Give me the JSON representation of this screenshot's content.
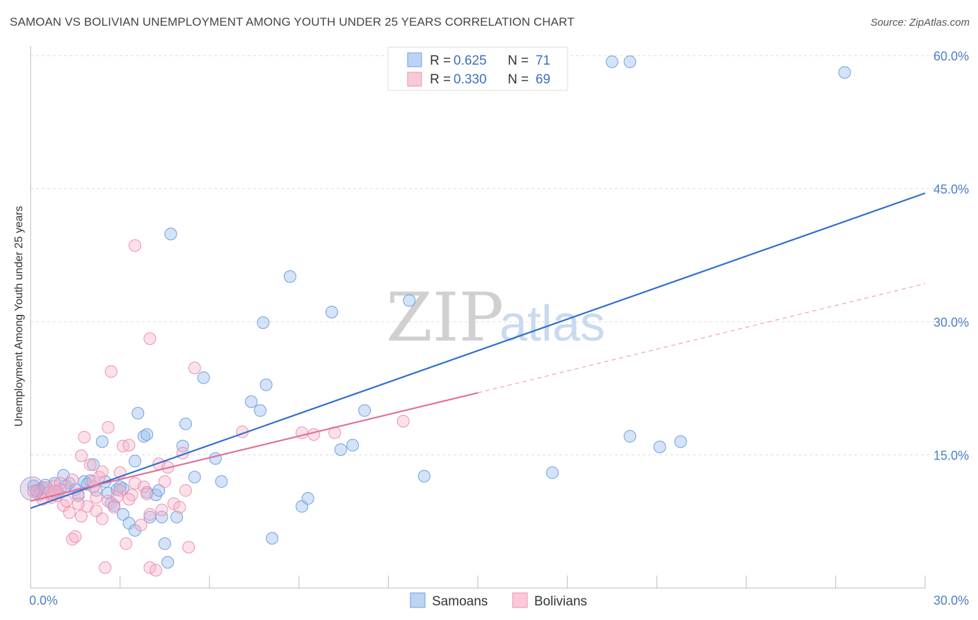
{
  "header": {
    "title": "SAMOAN VS BOLIVIAN UNEMPLOYMENT AMONG YOUTH UNDER 25 YEARS CORRELATION CHART",
    "source": "Source: ZipAtlas.com"
  },
  "watermark": {
    "zip": "ZIP",
    "atlas": "atlas"
  },
  "legend": {
    "samoans": {
      "r_label": "R =",
      "r_value": "0.625",
      "n_label": "N =",
      "n_value": "71",
      "color": "#6f9fe0"
    },
    "bolivians": {
      "r_label": "R =",
      "r_value": "0.330",
      "n_label": "N =",
      "n_value": "69",
      "color": "#f08fb0"
    }
  },
  "bottom_legend": {
    "samoans": "Samoans",
    "bolivians": "Bolivians"
  },
  "chart_data": {
    "type": "scatter",
    "title": "SAMOAN VS BOLIVIAN UNEMPLOYMENT AMONG YOUTH UNDER 25 YEARS CORRELATION CHART",
    "xlabel": "",
    "ylabel": "Unemployment Among Youth under 25 years",
    "xlim": [
      0,
      30
    ],
    "ylim": [
      0,
      60
    ],
    "x_tick_labels": [
      "0.0%",
      "30.0%"
    ],
    "y_tick_labels": [
      {
        "value": 15,
        "label": "15.0%"
      },
      {
        "value": 30,
        "label": "30.0%"
      },
      {
        "value": 45,
        "label": "45.0%"
      },
      {
        "value": 60,
        "label": "60.0%"
      }
    ],
    "grid": true,
    "series": [
      {
        "name": "Samoans",
        "color": "#6f9fe0",
        "trend": {
          "x0": 0,
          "y0": 9.0,
          "x1": 30,
          "y1": 44.5,
          "dashed_from": null
        },
        "points": [
          [
            0.1,
            11.5
          ],
          [
            0.3,
            11.0
          ],
          [
            0.4,
            11.3
          ],
          [
            0.6,
            11.0
          ],
          [
            0.7,
            10.6
          ],
          [
            0.8,
            11.8
          ],
          [
            1.0,
            11.1
          ],
          [
            1.1,
            12.7
          ],
          [
            1.3,
            11.8
          ],
          [
            1.5,
            11.1
          ],
          [
            1.6,
            10.4
          ],
          [
            1.8,
            12.0
          ],
          [
            2.0,
            12.1
          ],
          [
            2.1,
            13.9
          ],
          [
            2.2,
            11.0
          ],
          [
            2.4,
            16.5
          ],
          [
            2.6,
            10.7
          ],
          [
            2.7,
            9.6
          ],
          [
            2.8,
            9.3
          ],
          [
            2.9,
            11.1
          ],
          [
            3.1,
            11.2
          ],
          [
            3.1,
            8.3
          ],
          [
            3.3,
            7.3
          ],
          [
            3.5,
            6.5
          ],
          [
            3.5,
            14.3
          ],
          [
            3.6,
            19.7
          ],
          [
            3.8,
            17.1
          ],
          [
            3.9,
            17.3
          ],
          [
            3.9,
            10.8
          ],
          [
            4.0,
            8.0
          ],
          [
            4.2,
            10.5
          ],
          [
            4.3,
            11.0
          ],
          [
            4.4,
            8.0
          ],
          [
            4.5,
            5.0
          ],
          [
            4.6,
            2.9
          ],
          [
            4.7,
            39.9
          ],
          [
            4.9,
            8.0
          ],
          [
            5.1,
            16.0
          ],
          [
            5.2,
            18.5
          ],
          [
            5.5,
            12.5
          ],
          [
            5.8,
            23.7
          ],
          [
            6.2,
            14.6
          ],
          [
            6.4,
            12.0
          ],
          [
            7.4,
            21.0
          ],
          [
            7.7,
            20.0
          ],
          [
            7.8,
            29.9
          ],
          [
            7.9,
            22.9
          ],
          [
            8.1,
            5.6
          ],
          [
            8.7,
            35.1
          ],
          [
            9.1,
            9.2
          ],
          [
            9.3,
            10.1
          ],
          [
            10.1,
            31.1
          ],
          [
            10.4,
            15.6
          ],
          [
            10.8,
            16.1
          ],
          [
            11.2,
            20.0
          ],
          [
            12.7,
            32.4
          ],
          [
            13.2,
            12.6
          ],
          [
            17.5,
            13.0
          ],
          [
            19.5,
            59.3
          ],
          [
            20.1,
            59.3
          ],
          [
            20.1,
            17.1
          ],
          [
            21.1,
            15.9
          ],
          [
            21.8,
            16.5
          ],
          [
            27.3,
            58.1
          ],
          [
            0.2,
            10.9
          ],
          [
            0.5,
            11.6
          ],
          [
            0.9,
            10.9
          ],
          [
            1.2,
            11.5
          ],
          [
            1.9,
            11.7
          ],
          [
            2.5,
            12.0
          ],
          [
            3.0,
            11.4
          ]
        ]
      },
      {
        "name": "Bolivians",
        "color": "#f08fb0",
        "trend": {
          "x0": 0,
          "y0": 9.8,
          "x1": 15,
          "y1": 22.0,
          "dashed_to_x": 30,
          "dashed_to_y": 34.3
        },
        "points": [
          [
            0.2,
            11.0
          ],
          [
            0.3,
            10.5
          ],
          [
            0.5,
            11.3
          ],
          [
            0.6,
            10.7
          ],
          [
            0.7,
            10.2
          ],
          [
            0.8,
            11.5
          ],
          [
            0.9,
            10.4
          ],
          [
            1.0,
            11.8
          ],
          [
            1.1,
            9.3
          ],
          [
            1.2,
            9.8
          ],
          [
            1.3,
            8.5
          ],
          [
            1.4,
            5.5
          ],
          [
            1.5,
            5.8
          ],
          [
            1.6,
            10.6
          ],
          [
            1.7,
            14.9
          ],
          [
            1.7,
            8.1
          ],
          [
            1.8,
            17.0
          ],
          [
            1.9,
            9.2
          ],
          [
            2.0,
            13.9
          ],
          [
            2.1,
            11.4
          ],
          [
            2.1,
            12.0
          ],
          [
            2.2,
            8.7
          ],
          [
            2.3,
            12.5
          ],
          [
            2.4,
            7.8
          ],
          [
            2.5,
            2.3
          ],
          [
            2.6,
            9.8
          ],
          [
            2.6,
            18.1
          ],
          [
            2.7,
            24.4
          ],
          [
            2.8,
            9.1
          ],
          [
            2.9,
            10.3
          ],
          [
            3.0,
            13.0
          ],
          [
            3.1,
            16.0
          ],
          [
            3.2,
            5.0
          ],
          [
            3.3,
            16.1
          ],
          [
            3.4,
            10.5
          ],
          [
            3.5,
            11.8
          ],
          [
            3.5,
            38.6
          ],
          [
            3.7,
            7.1
          ],
          [
            3.8,
            11.4
          ],
          [
            3.9,
            10.6
          ],
          [
            4.0,
            2.3
          ],
          [
            4.0,
            28.1
          ],
          [
            4.2,
            2.0
          ],
          [
            4.3,
            14.0
          ],
          [
            4.4,
            8.8
          ],
          [
            4.5,
            12.0
          ],
          [
            4.6,
            13.6
          ],
          [
            4.8,
            9.5
          ],
          [
            5.0,
            9.1
          ],
          [
            5.1,
            15.2
          ],
          [
            5.2,
            11.0
          ],
          [
            5.3,
            4.6
          ],
          [
            5.5,
            24.8
          ],
          [
            7.1,
            17.6
          ],
          [
            9.1,
            17.5
          ],
          [
            9.5,
            17.3
          ],
          [
            10.2,
            17.5
          ],
          [
            12.5,
            18.8
          ],
          [
            0.1,
            10.9
          ],
          [
            0.4,
            10.0
          ],
          [
            1.1,
            11.0
          ],
          [
            1.4,
            12.2
          ],
          [
            2.4,
            13.1
          ],
          [
            3.0,
            11.0
          ],
          [
            2.2,
            10.2
          ],
          [
            1.6,
            9.5
          ],
          [
            4.0,
            8.3
          ],
          [
            0.8,
            10.9
          ],
          [
            3.3,
            10.0
          ]
        ]
      }
    ]
  }
}
